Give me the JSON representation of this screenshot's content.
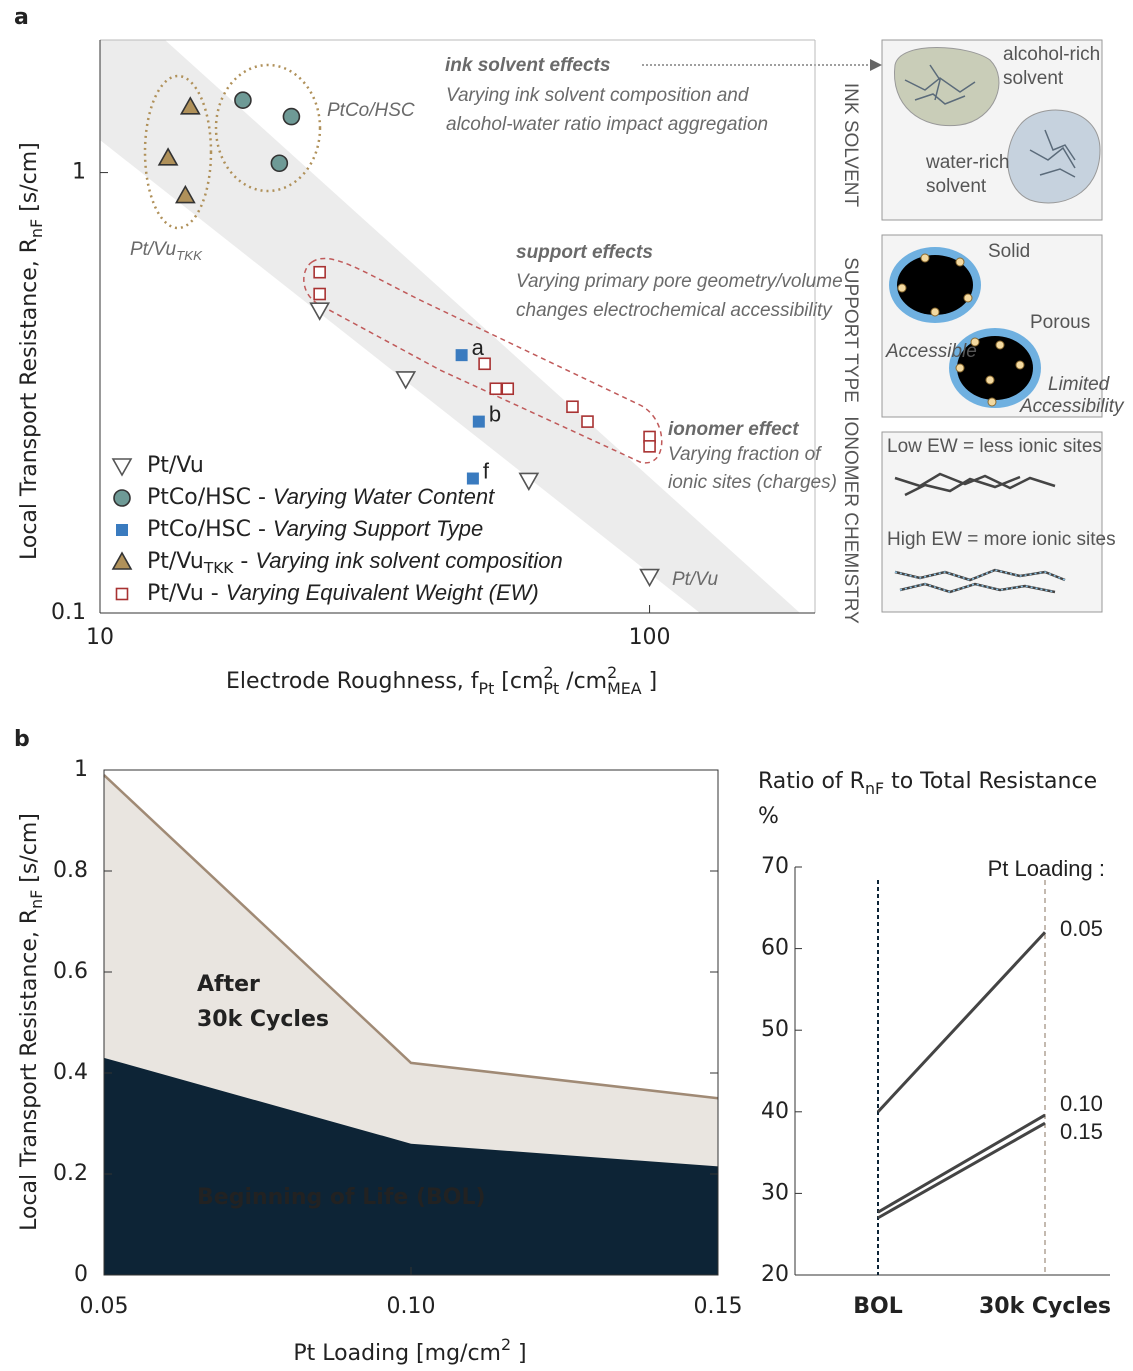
{
  "chart_data": [
    {
      "type": "scatter",
      "panel_label": "a",
      "xlabel": [
        "Electrode Roughness,  f",
        "Pt",
        " [cm",
        "2",
        "Pt",
        " /cm",
        "2",
        "MEA",
        " ]"
      ],
      "ylabel": [
        "Local Transport Resistance, R",
        "nF",
        "  [s/cm]"
      ],
      "xscale": "log",
      "yscale": "log",
      "xlim": [
        10,
        200
      ],
      "ylim": [
        0.1,
        2
      ],
      "xticks": [
        10,
        100
      ],
      "yticks": [
        0.1,
        1
      ],
      "legend_loc": "lower left",
      "series": [
        {
          "name": "Pt/Vu",
          "color": "#555555",
          "marker": "triangle-down",
          "x": [
            25.1,
            36,
            60.3,
            100
          ],
          "values": [
            0.487,
            0.34,
            0.2,
            0.121
          ]
        },
        {
          "name": "PtCo/HSC - Varying Water Content",
          "color": "#6e9a96",
          "marker": "circle",
          "x": [
            18.2,
            22.3,
            21.2
          ],
          "values": [
            1.46,
            1.34,
            1.05
          ]
        },
        {
          "name": "PtCo/HSC - Varying Support Type",
          "color": "#3a7bbf",
          "marker": "square",
          "x": [
            45.5,
            48.9,
            47.7
          ],
          "values": [
            0.385,
            0.272,
            0.202
          ],
          "point_labels": [
            "a",
            "b",
            "f"
          ]
        },
        {
          "name": "Pt/VuTKK - Varying ink solvent composition",
          "color": "#b0915a",
          "marker": "triangle-up",
          "x": [
            14.6,
            13.3,
            14.3
          ],
          "values": [
            1.41,
            1.08,
            0.887
          ]
        },
        {
          "name": "Pt/Vu - Varying Equivalent Weight (EW)",
          "color": "#a83232",
          "marker": "square-open",
          "x": [
            25.1,
            25.1,
            50.1,
            52.5,
            55.2,
            72.4,
            77.1,
            100,
            100
          ],
          "values": [
            0.594,
            0.53,
            0.368,
            0.323,
            0.323,
            0.294,
            0.272,
            0.251,
            0.239
          ]
        }
      ],
      "annotations": [
        "ink solvent effects",
        "Varying ink solvent composition and",
        "alcohol-water ratio impact aggregation",
        "support effects",
        "Varying primary pore geometry/volume",
        "changes electrochemical accessibility",
        "ionomer effect",
        "Varying fraction of",
        "ionic sites (charges)",
        "PtCo/HSC",
        "Pt/VuTKK",
        "Pt/Vu"
      ],
      "side_panels": [
        {
          "title": "INK SOLVENT",
          "labels": [
            "alcohol-rich",
            "solvent",
            "water-rich",
            "solvent"
          ]
        },
        {
          "title": "SUPPORT TYPE",
          "labels": [
            "Solid",
            "Porous",
            "Accessible",
            "Limited",
            "Accessibility"
          ]
        },
        {
          "title": "IONOMER CHEMISTRY",
          "labels": [
            "Low EW = less ionic sites",
            "High EW = more ionic sites"
          ]
        }
      ]
    },
    {
      "type": "area",
      "panel_label": "b",
      "xlabel": [
        "Pt Loading [mg/cm",
        "2",
        " ]"
      ],
      "ylabel": [
        "Local Transport Resistance, R",
        "nF",
        "  [s/cm]"
      ],
      "x": [
        0.05,
        0.1,
        0.15
      ],
      "xlim": [
        0.05,
        0.15
      ],
      "xticks": [
        0.05,
        {
          "value": 0.1,
          "label": "0.10"
        },
        0.15
      ],
      "ylim": [
        0,
        1
      ],
      "yticks": [
        0,
        0.2,
        0.4,
        0.6,
        0.8,
        1
      ],
      "series": [
        {
          "name": "After 30k Cycles",
          "color": "#e9e5e0",
          "line_color": "#a08a75",
          "values": [
            0.99,
            0.42,
            0.35
          ]
        },
        {
          "name": "Beginning of Life (BOL)",
          "color": "#0d2436",
          "values": [
            0.43,
            0.26,
            0.215
          ]
        }
      ]
    },
    {
      "type": "slope",
      "title": [
        "Ratio of R",
        "nF",
        " to Total Resistance"
      ],
      "subtitle": "%",
      "legend_title": "Pt Loading :",
      "categories": [
        "BOL",
        "30k Cycles"
      ],
      "category_colors": [
        "#0d2436",
        "#8a7460"
      ],
      "ylim": [
        20,
        70
      ],
      "yticks": [
        20,
        30,
        40,
        50,
        60,
        70
      ],
      "series": [
        {
          "name": "0.05",
          "color": "#444444",
          "values": [
            40,
            62
          ]
        },
        {
          "name": "0.10",
          "color": "#444444",
          "values": [
            27.7,
            39.6
          ]
        },
        {
          "name": "0.15",
          "color": "#444444",
          "values": [
            27,
            38.6
          ]
        }
      ]
    }
  ]
}
